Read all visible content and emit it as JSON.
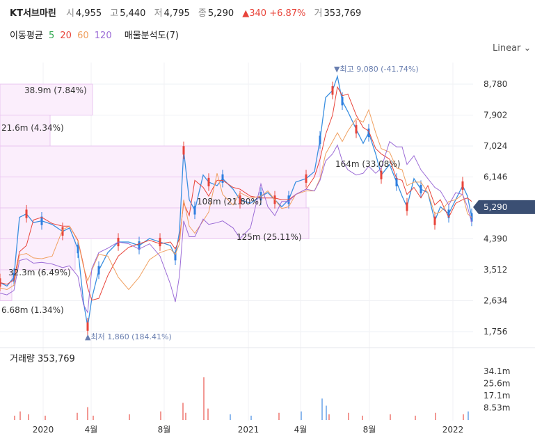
{
  "header": {
    "name": "KT서브마린",
    "open_label": "시",
    "open": "4,955",
    "high_label": "고",
    "high": "5,440",
    "low_label": "저",
    "low": "4,795",
    "close_label": "종",
    "close": "5,290",
    "change": "▲340 +6.87%",
    "volume_label": "거",
    "volume": "353,769"
  },
  "ma_legend": {
    "label": "이동평균",
    "items": [
      {
        "text": "5",
        "color": "#2fa84f"
      },
      {
        "text": "20",
        "color": "#e8443a"
      },
      {
        "text": "60",
        "color": "#f0a060"
      },
      {
        "text": "120",
        "color": "#9b6bd6"
      }
    ],
    "profile_label": "매물분석도(7)"
  },
  "scale_mode": "Linear",
  "chart_data": [
    {
      "type": "candlestick",
      "x_tick_labels": [
        "2020",
        "4월",
        "8월",
        "2021",
        "4월",
        "8월",
        "2022"
      ],
      "y_ticks": [
        1756,
        2634,
        3512,
        4390,
        5290,
        6146,
        7024,
        7902,
        8780
      ],
      "y_tick_labels": [
        "1,756",
        "2,634",
        "3,512",
        "4,390",
        "5,290",
        "6,146",
        "7,024",
        "7,902",
        "8,780"
      ],
      "current_price": 5290,
      "current_price_label": "5,290",
      "annotations": [
        {
          "text": "▼최고 9,080 (-41.74%)",
          "value": 9080
        },
        {
          "text": "▲최저 1,860 (184.41%)",
          "value": 1860
        }
      ],
      "volume_profile": [
        {
          "label": "38.9m (7.84%)",
          "low": 7900,
          "high": 8780
        },
        {
          "label": "21.6m (4.34%)",
          "low": 7024,
          "high": 7902
        },
        {
          "label": "164m (33.08%)",
          "low": 6146,
          "high": 7024
        },
        {
          "label": "108m (21.80%)",
          "low": 5268,
          "high": 6146
        },
        {
          "label": "125m (25.11%)",
          "low": 4390,
          "high": 5268
        },
        {
          "label": "32.3m (6.49%)",
          "low": 3512,
          "high": 4390
        },
        {
          "label": "6.68m (1.34%)",
          "low": 2634,
          "high": 3512
        }
      ],
      "moving_averages": [
        5,
        20,
        60,
        120
      ]
    },
    {
      "type": "bar",
      "title": "거래량 353,769",
      "y_tick_labels": [
        "34.1m",
        "25.6m",
        "17.1m",
        "8.53m"
      ],
      "y_ticks": [
        34.1,
        25.6,
        17.1,
        8.53
      ]
    }
  ],
  "colors": {
    "up": "#e8443a",
    "down": "#2f7fe0",
    "profile": "#e9c6f0",
    "badge": "#3b4f73"
  }
}
